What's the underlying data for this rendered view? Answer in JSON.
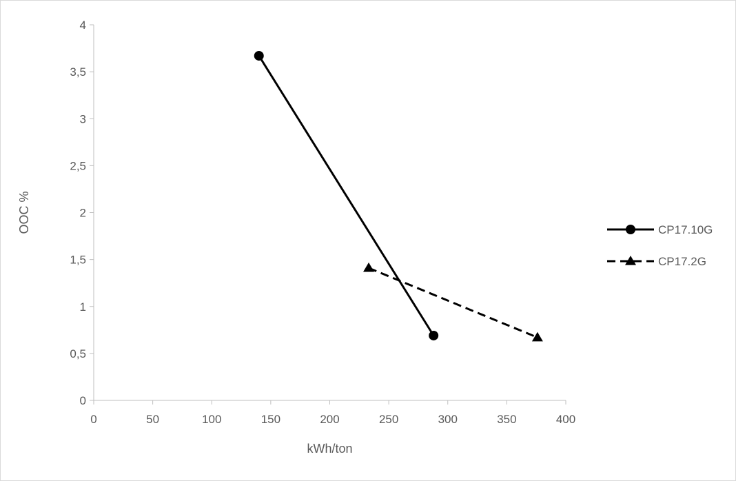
{
  "chart_data": {
    "type": "line",
    "title": "",
    "xlabel": "kWh/ton",
    "ylabel": "OOC %",
    "xlim": [
      0,
      400
    ],
    "ylim": [
      0,
      4
    ],
    "x_ticks": [
      "0",
      "50",
      "100",
      "150",
      "200",
      "250",
      "300",
      "350",
      "400"
    ],
    "y_ticks": [
      "0",
      "0,5",
      "1",
      "1,5",
      "2",
      "2,5",
      "3",
      "3,5",
      "4"
    ],
    "grid": false,
    "legend_position": "right",
    "series": [
      {
        "name": "CP17.10G",
        "line_style": "solid",
        "marker": "circle",
        "color": "#000000",
        "points": [
          {
            "x": 140,
            "y": 3.67
          },
          {
            "x": 288,
            "y": 0.69
          }
        ]
      },
      {
        "name": "CP17.2G",
        "line_style": "dashed",
        "marker": "triangle",
        "color": "#000000",
        "points": [
          {
            "x": 233,
            "y": 1.41
          },
          {
            "x": 376,
            "y": 0.67
          }
        ]
      }
    ]
  }
}
